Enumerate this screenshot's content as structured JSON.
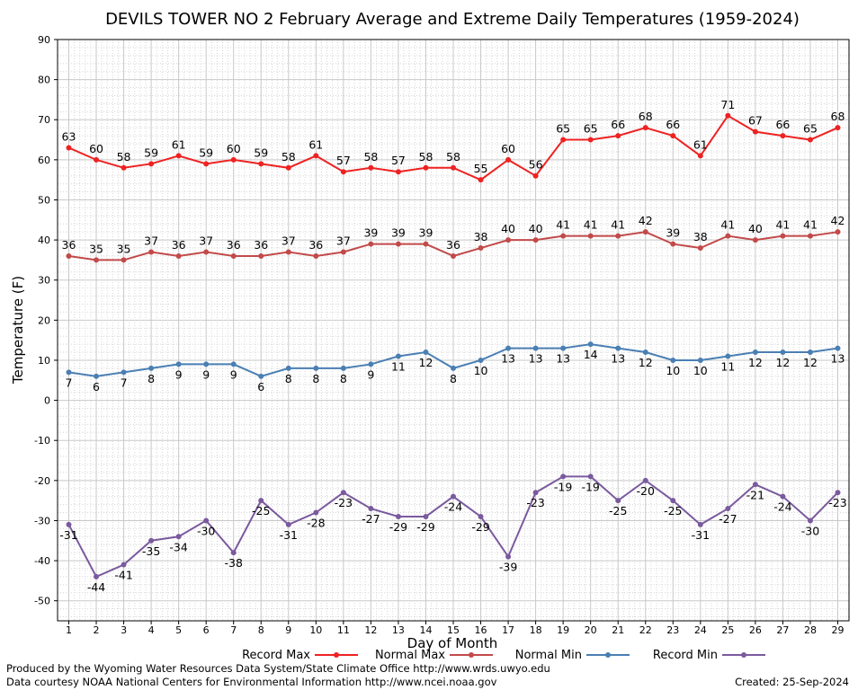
{
  "chart_data": {
    "type": "line",
    "title": "DEVILS TOWER NO 2 February Average and Extreme Daily Temperatures (1959-2024)",
    "xlabel": "Day of Month",
    "ylabel": "Temperature (F)",
    "ylim": [
      -55,
      90
    ],
    "yticks": [
      90,
      80,
      70,
      60,
      50,
      40,
      30,
      20,
      10,
      0,
      -10,
      -20,
      -30,
      -40,
      -50
    ],
    "x": [
      1,
      2,
      3,
      4,
      5,
      6,
      7,
      8,
      9,
      10,
      11,
      12,
      13,
      14,
      15,
      16,
      17,
      18,
      19,
      20,
      21,
      22,
      23,
      24,
      25,
      26,
      27,
      28,
      29
    ],
    "grid": true,
    "series": [
      {
        "name": "Record Max",
        "color": "#ee2222",
        "label_position": "above",
        "values": [
          63,
          60,
          58,
          59,
          61,
          59,
          60,
          59,
          58,
          61,
          57,
          58,
          57,
          58,
          58,
          55,
          60,
          56,
          65,
          65,
          66,
          68,
          66,
          61,
          71,
          67,
          66,
          65,
          68
        ]
      },
      {
        "name": "Normal Max",
        "color": "#c24a4a",
        "label_position": "above",
        "values": [
          36,
          35,
          35,
          37,
          36,
          37,
          36,
          36,
          37,
          36,
          37,
          39,
          39,
          39,
          36,
          38,
          40,
          40,
          41,
          41,
          41,
          42,
          39,
          38,
          41,
          40,
          41,
          41,
          42
        ]
      },
      {
        "name": "Normal Min",
        "color": "#4a7fb3",
        "label_position": "below",
        "values": [
          7,
          6,
          7,
          8,
          9,
          9,
          9,
          6,
          8,
          8,
          8,
          9,
          11,
          12,
          8,
          10,
          13,
          13,
          13,
          14,
          13,
          12,
          10,
          10,
          11,
          12,
          12,
          12,
          13
        ]
      },
      {
        "name": "Record Min",
        "color": "#7a5a9e",
        "label_position": "below",
        "values": [
          -31,
          -44,
          -41,
          -35,
          -34,
          -30,
          -38,
          -25,
          -31,
          -28,
          -23,
          -27,
          -29,
          -29,
          -24,
          -29,
          -39,
          -23,
          -19,
          -19,
          -25,
          -20,
          -25,
          -31,
          -27,
          -21,
          -24,
          -30,
          -23
        ]
      }
    ]
  },
  "footer": {
    "line1": "Produced by the Wyoming Water Resources Data System/State Climate Office http://www.wrds.uwyo.edu",
    "line2": "Data courtesy NOAA National Centers for Environmental Information http://www.ncei.noaa.gov",
    "created": "Created:  25-Sep-2024"
  }
}
